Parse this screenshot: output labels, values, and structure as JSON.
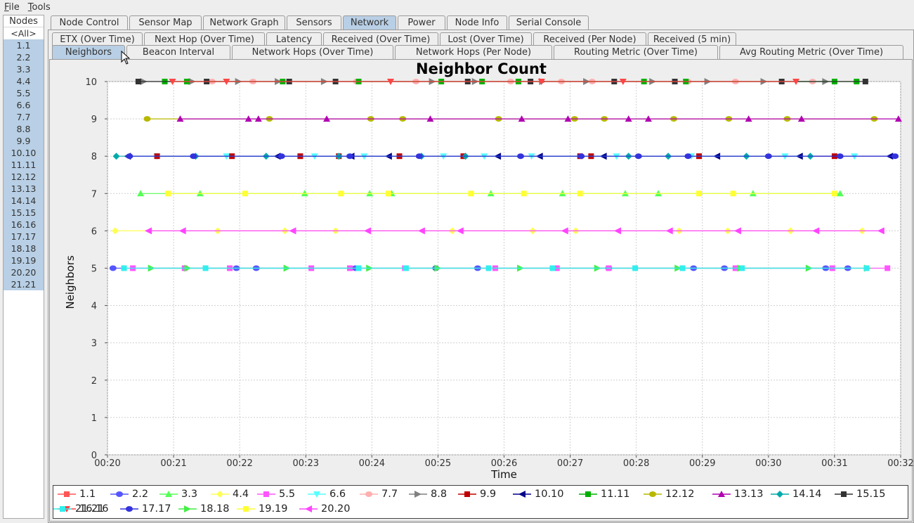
{
  "menu": [
    {
      "label": "File",
      "u": "F",
      "rest": "ile"
    },
    {
      "label": "Tools",
      "u": "T",
      "rest": "ools"
    }
  ],
  "nodes": {
    "title": "Nodes",
    "items": [
      "<All>",
      "1.1",
      "2.2",
      "3.3",
      "4.4",
      "5.5",
      "6.6",
      "7.7",
      "8.8",
      "9.9",
      "10.10",
      "11.11",
      "12.12",
      "13.13",
      "14.14",
      "15.15",
      "16.16",
      "17.17",
      "18.18",
      "19.19",
      "20.20",
      "21.21"
    ]
  },
  "main_tabs": [
    {
      "label": "Node Control",
      "active": false
    },
    {
      "label": "Sensor Map",
      "active": false
    },
    {
      "label": "Network Graph",
      "active": false
    },
    {
      "label": "Sensors",
      "active": false
    },
    {
      "label": "Network",
      "active": true
    },
    {
      "label": "Power",
      "active": false
    },
    {
      "label": "Node Info",
      "active": false
    },
    {
      "label": "Serial Console",
      "active": false
    }
  ],
  "sub_tabs_row1": [
    "ETX (Over Time)",
    "Next Hop (Over Time)",
    "Latency",
    "Received (Over Time)",
    "Lost (Over Time)",
    "Received (Per Node)",
    "Received (5 min)"
  ],
  "sub_tabs_row2": [
    {
      "label": "Neighbors",
      "active": true
    },
    {
      "label": "Beacon Interval",
      "active": false
    },
    {
      "label": "Network Hops (Over Time)",
      "active": false
    },
    {
      "label": "Network Hops (Per Node)",
      "active": false
    },
    {
      "label": "Routing Metric (Over Time)",
      "active": false
    },
    {
      "label": "Avg Routing Metric (Over Time)",
      "active": false
    }
  ],
  "chart_data": {
    "type": "scatter",
    "title": "Neighbor Count",
    "xlabel": "Time",
    "ylabel": "Neighbors",
    "xlim": [
      "00:20",
      "00:32"
    ],
    "x_ticks": [
      "00:20",
      "00:21",
      "00:22",
      "00:23",
      "00:24",
      "00:25",
      "00:26",
      "00:27",
      "00:28",
      "00:29",
      "00:30",
      "00:31",
      "00:32"
    ],
    "ylim": [
      0,
      10
    ],
    "y_ticks": [
      "0",
      "1",
      "2",
      "3",
      "4",
      "5",
      "6",
      "7",
      "8",
      "9",
      "10"
    ],
    "grid": true,
    "legend_position": "bottom",
    "series": [
      {
        "name": "1.1",
        "color": "#ff5555",
        "marker": "square",
        "y": 10,
        "x": []
      },
      {
        "name": "2.2",
        "color": "#5555ff",
        "marker": "circle",
        "y": 5,
        "x": [
          "00:20:05",
          "00:21:57",
          "00:22:15",
          "00:23:45",
          "00:24:58",
          "00:25:36",
          "00:27:35",
          "00:28:52",
          "00:29:20",
          "00:30:52",
          "00:31:12"
        ]
      },
      {
        "name": "3.3",
        "color": "#55ff55",
        "marker": "triangle-up",
        "y": 7,
        "x": [
          "00:20:30",
          "00:21:24",
          "00:22:59",
          "00:23:58",
          "00:24:18",
          "00:25:48",
          "00:26:53",
          "00:27:50",
          "00:28:20",
          "00:29:46",
          "00:31:05"
        ]
      },
      {
        "name": "4.4",
        "color": "#ffff55",
        "marker": "diamond",
        "y": 6,
        "x": [
          "00:20:07",
          "00:21:40",
          "00:22:41",
          "00:23:27",
          "00:25:13",
          "00:26:26",
          "00:27:05",
          "00:28:39",
          "00:29:23",
          "00:30:20",
          "00:31:25"
        ]
      },
      {
        "name": "5.5",
        "color": "#ff55ff",
        "marker": "square",
        "y": 5,
        "x": [
          "00:20:23",
          "00:21:10",
          "00:21:51",
          "00:23:05",
          "00:23:40",
          "00:24:30",
          "00:25:52",
          "00:26:48",
          "00:27:35",
          "00:29:30",
          "00:30:58",
          "00:31:48"
        ]
      },
      {
        "name": "6.6",
        "color": "#55ffff",
        "marker": "triangle-down",
        "y": 8,
        "x": [
          "00:20:45",
          "00:21:48",
          "00:23:08",
          "00:23:53",
          "00:25:05",
          "00:25:42",
          "00:26:25",
          "00:27:42",
          "00:28:50",
          "00:30:15",
          "00:31:18"
        ]
      },
      {
        "name": "7.7",
        "color": "#ffafaf",
        "marker": "circle",
        "y": 10,
        "x": [
          "00:21:35",
          "00:22:12",
          "00:23:46",
          "00:24:40",
          "00:26:06",
          "00:26:52",
          "00:27:20",
          "00:28:47",
          "00:29:30",
          "00:30:40",
          "00:31:20"
        ]
      },
      {
        "name": "8.8",
        "color": "#808080",
        "marker": "triangle-right",
        "y": 10,
        "x": [
          "00:20:33",
          "00:21:17",
          "00:21:59",
          "00:22:35",
          "00:23:17",
          "00:24:55",
          "00:25:34",
          "00:26:35",
          "00:27:15",
          "00:28:15",
          "00:29:05",
          "00:29:56",
          "00:30:52"
        ]
      },
      {
        "name": "9.9",
        "color": "#c00000",
        "marker": "square",
        "y": 8,
        "x": [
          "00:20:45",
          "00:21:53",
          "00:22:55",
          "00:23:30",
          "00:24:25",
          "00:25:23",
          "00:27:09",
          "00:27:19",
          "00:28:57",
          "00:31:00"
        ]
      },
      {
        "name": "10.10",
        "color": "#00008b",
        "marker": "triangle-left",
        "y": 8,
        "x": [
          "00:20:18",
          "00:22:34",
          "00:23:41",
          "00:24:15",
          "00:25:54",
          "00:26:32",
          "00:27:30",
          "00:29:13",
          "00:30:28",
          "00:31:50"
        ]
      },
      {
        "name": "11.11",
        "color": "#00b000",
        "marker": "square",
        "y": 10,
        "x": [
          "00:20:52",
          "00:21:12",
          "00:22:39",
          "00:23:48",
          "00:25:03",
          "00:25:40",
          "00:26:13",
          "00:28:07",
          "00:28:45",
          "00:31:00",
          "00:31:20"
        ]
      },
      {
        "name": "12.12",
        "color": "#b8b800",
        "marker": "circle",
        "y": 9,
        "x": [
          "00:20:36",
          "00:22:27",
          "00:23:59",
          "00:24:28",
          "00:25:55",
          "00:27:04",
          "00:27:31",
          "00:28:34",
          "00:29:24",
          "00:30:17",
          "00:31:36"
        ]
      },
      {
        "name": "13.13",
        "color": "#b000b0",
        "marker": "triangle-up",
        "y": 9,
        "x": [
          "00:21:06",
          "00:22:08",
          "00:22:17",
          "00:23:19",
          "00:24:53",
          "00:26:16",
          "00:26:58",
          "00:27:53",
          "00:28:11",
          "00:29:42",
          "00:30:30",
          "00:31:58"
        ]
      },
      {
        "name": "14.14",
        "color": "#00aaaa",
        "marker": "diamond",
        "y": 8,
        "x": [
          "00:20:08",
          "00:21:20",
          "00:22:24",
          "00:23:30",
          "00:24:45",
          "00:25:25",
          "00:27:53",
          "00:28:29",
          "00:29:40",
          "00:30:38"
        ]
      },
      {
        "name": "15.15",
        "color": "#333333",
        "marker": "square",
        "y": 10,
        "x": [
          "00:20:28",
          "00:21:30",
          "00:22:45",
          "00:23:27",
          "00:25:27",
          "00:26:24",
          "00:27:40",
          "00:28:35",
          "00:30:12",
          "00:31:28"
        ]
      },
      {
        "name": "16.16",
        "color": "#ff4444",
        "marker": "triangle-down",
        "y": 10,
        "x": [
          "00:20:59",
          "00:21:48",
          "00:24:17",
          "00:26:34",
          "00:27:48",
          "00:30:25"
        ]
      },
      {
        "name": "17.17",
        "color": "#3333dd",
        "marker": "circle",
        "y": 8,
        "x": [
          "00:20:20",
          "00:21:18",
          "00:22:38",
          "00:23:40",
          "00:24:43",
          "00:26:15",
          "00:27:10",
          "00:28:02",
          "00:28:47",
          "00:30:00",
          "00:31:05",
          "00:31:55"
        ]
      },
      {
        "name": "18.18",
        "color": "#44ee44",
        "marker": "triangle-right",
        "y": 5,
        "x": [
          "00:20:40",
          "00:21:13",
          "00:22:43",
          "00:23:58",
          "00:25:00",
          "00:26:15",
          "00:27:25",
          "00:28:38",
          "00:29:35",
          "00:30:37",
          "00:31:30"
        ]
      },
      {
        "name": "19.19",
        "color": "#ffff33",
        "marker": "square",
        "y": 7,
        "x": [
          "00:20:55",
          "00:22:05",
          "00:23:32",
          "00:24:15",
          "00:25:30",
          "00:26:18",
          "00:27:09",
          "00:28:57",
          "00:29:28",
          "00:31:00"
        ]
      },
      {
        "name": "20.20",
        "color": "#ff44ff",
        "marker": "triangle-left",
        "y": 6,
        "x": [
          "00:20:37",
          "00:21:08",
          "00:22:48",
          "00:23:56",
          "00:24:45",
          "00:25:20",
          "00:26:55",
          "00:27:43",
          "00:28:30",
          "00:29:32",
          "00:30:43",
          "00:31:42"
        ]
      },
      {
        "name": "21.21",
        "color": "#33eeee",
        "marker": "square",
        "y": 5,
        "x": [
          "00:20:15",
          "00:21:29",
          "00:23:48",
          "00:24:31",
          "00:25:46",
          "00:26:44",
          "00:27:59",
          "00:28:42",
          "00:29:36",
          "00:31:29"
        ]
      }
    ]
  }
}
